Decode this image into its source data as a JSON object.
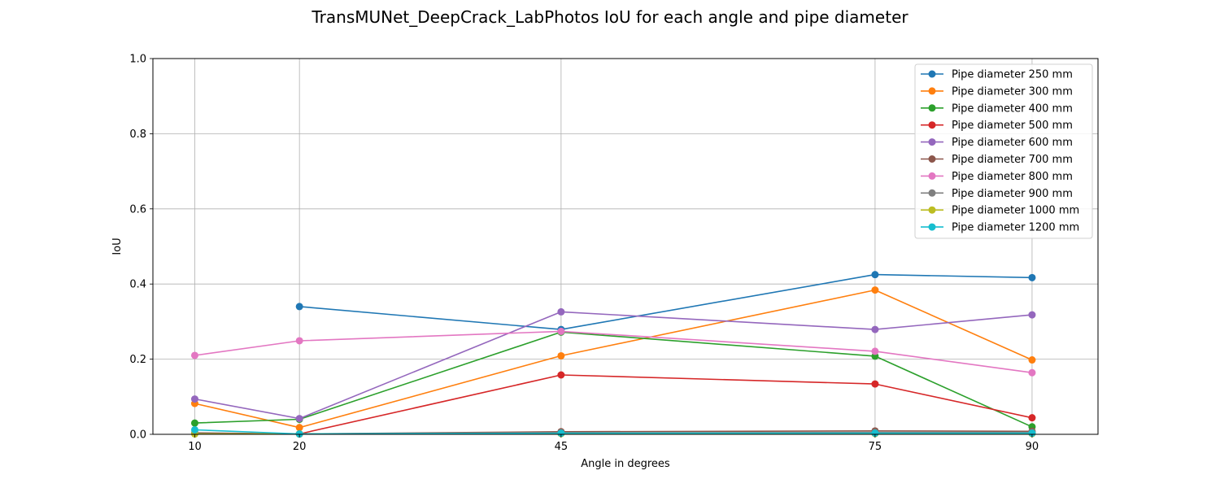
{
  "chart_data": {
    "type": "line",
    "title": "TransMUNet_DeepCrack_LabPhotos IoU for each angle and pipe diameter",
    "xlabel": "Angle in degrees",
    "ylabel": "IoU",
    "x_ticks": [
      10,
      20,
      45,
      75,
      90
    ],
    "y_ticks": [
      0.0,
      0.2,
      0.4,
      0.6,
      0.8,
      1.0
    ],
    "y_tick_labels": [
      "0.0",
      "0.2",
      "0.4",
      "0.6",
      "0.8",
      "1.0"
    ],
    "xlim": [
      6,
      96.3
    ],
    "ylim": [
      0,
      1.0
    ],
    "grid": true,
    "legend_position": "top-right",
    "series": [
      {
        "name": "Pipe diameter 250 mm",
        "color": "#1f77b4",
        "x": [
          20,
          45,
          75,
          90
        ],
        "y": [
          0.34,
          0.279,
          0.425,
          0.417
        ]
      },
      {
        "name": "Pipe diameter 300 mm",
        "color": "#ff7f0e",
        "x": [
          10,
          20,
          45,
          75,
          90
        ],
        "y": [
          0.082,
          0.018,
          0.209,
          0.384,
          0.198
        ]
      },
      {
        "name": "Pipe diameter 400 mm",
        "color": "#2ca02c",
        "x": [
          10,
          20,
          45,
          75,
          90
        ],
        "y": [
          0.03,
          0.04,
          0.272,
          0.208,
          0.02
        ]
      },
      {
        "name": "Pipe diameter 500 mm",
        "color": "#d62728",
        "x": [
          20,
          45,
          75,
          90
        ],
        "y": [
          0.001,
          0.158,
          0.134,
          0.044
        ]
      },
      {
        "name": "Pipe diameter 600 mm",
        "color": "#9467bd",
        "x": [
          10,
          20,
          45,
          75,
          90
        ],
        "y": [
          0.094,
          0.042,
          0.326,
          0.279,
          0.318
        ]
      },
      {
        "name": "Pipe diameter 700 mm",
        "color": "#8c564b",
        "x": [
          10,
          20,
          45,
          75,
          90
        ],
        "y": [
          0.004,
          0.001,
          0.007,
          0.009,
          0.008
        ]
      },
      {
        "name": "Pipe diameter 800 mm",
        "color": "#e377c2",
        "x": [
          10,
          20,
          45,
          75,
          90
        ],
        "y": [
          0.21,
          0.249,
          0.274,
          0.221,
          0.164
        ]
      },
      {
        "name": "Pipe diameter 900 mm",
        "color": "#7f7f7f",
        "x": [
          10,
          20,
          45,
          75,
          90
        ],
        "y": [
          0.002,
          0.001,
          0.004,
          0.005,
          0.005
        ]
      },
      {
        "name": "Pipe diameter 1000 mm",
        "color": "#bcbd22",
        "x": [
          10,
          20,
          45,
          75,
          90
        ],
        "y": [
          0.001,
          0.001,
          0.002,
          0.002,
          0.002
        ]
      },
      {
        "name": "Pipe diameter 1200 mm",
        "color": "#17becf",
        "x": [
          10,
          20,
          45,
          75,
          90
        ],
        "y": [
          0.012,
          0.001,
          0.003,
          0.003,
          0.003
        ]
      }
    ]
  }
}
